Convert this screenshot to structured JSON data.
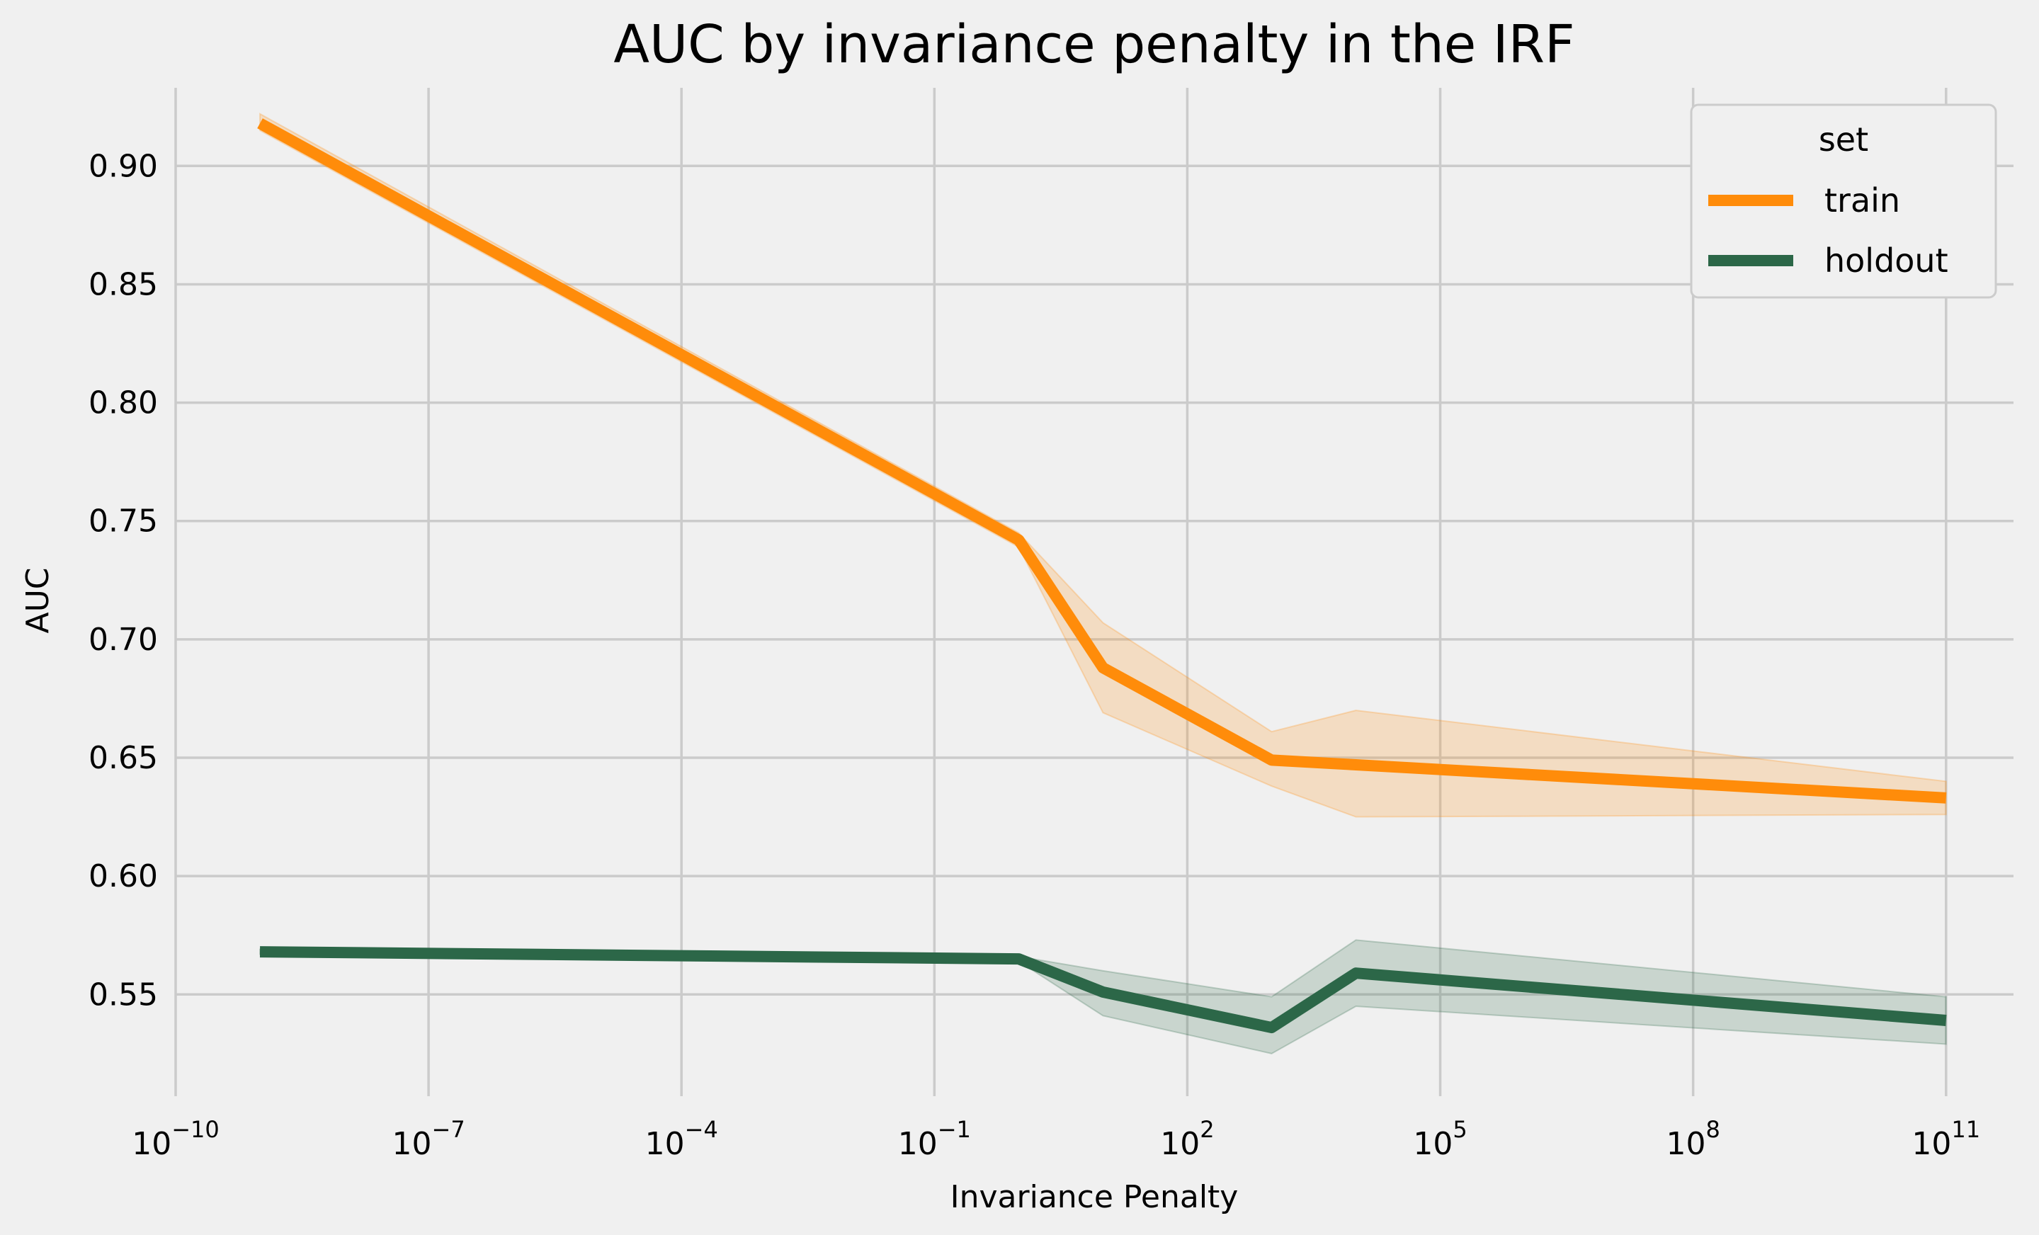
{
  "chart_data": {
    "type": "line",
    "title": "AUC by invariance penalty in the IRF",
    "xlabel": "Invariance Penalty",
    "ylabel": "AUC",
    "xscale": "log",
    "xlim_exp": [
      -10,
      11.8
    ],
    "ylim": [
      0.507,
      0.933
    ],
    "x_ticks_exp": [
      -10,
      -7,
      -4,
      -1,
      2,
      5,
      8,
      11
    ],
    "x_tick_base": "10",
    "y_ticks": [
      0.55,
      0.6,
      0.65,
      0.7,
      0.75,
      0.8,
      0.85,
      0.9
    ],
    "y_tick_labels": [
      "0.55",
      "0.60",
      "0.65",
      "0.70",
      "0.75",
      "0.80",
      "0.85",
      "0.90"
    ],
    "grid": true,
    "legend": {
      "title": "set",
      "placement": "top-right"
    },
    "series": [
      {
        "name": "train",
        "color": "#ff8c0a",
        "x": [
          1e-09,
          1,
          10,
          1000,
          10000,
          100000000000.0
        ],
        "y": [
          0.918,
          0.742,
          0.688,
          0.649,
          0.647,
          0.633
        ],
        "ci_low": [
          0.915,
          0.739,
          0.669,
          0.638,
          0.625,
          0.626
        ],
        "ci_high": [
          0.922,
          0.745,
          0.707,
          0.661,
          0.67,
          0.64
        ]
      },
      {
        "name": "holdout",
        "color": "#2c6748",
        "x": [
          1e-09,
          1,
          10,
          1000,
          10000,
          100000000000.0
        ],
        "y": [
          0.568,
          0.565,
          0.551,
          0.536,
          0.559,
          0.539
        ],
        "ci_low": [
          0.567,
          0.564,
          0.541,
          0.525,
          0.545,
          0.529
        ],
        "ci_high": [
          0.569,
          0.566,
          0.56,
          0.549,
          0.573,
          0.549
        ]
      }
    ]
  }
}
